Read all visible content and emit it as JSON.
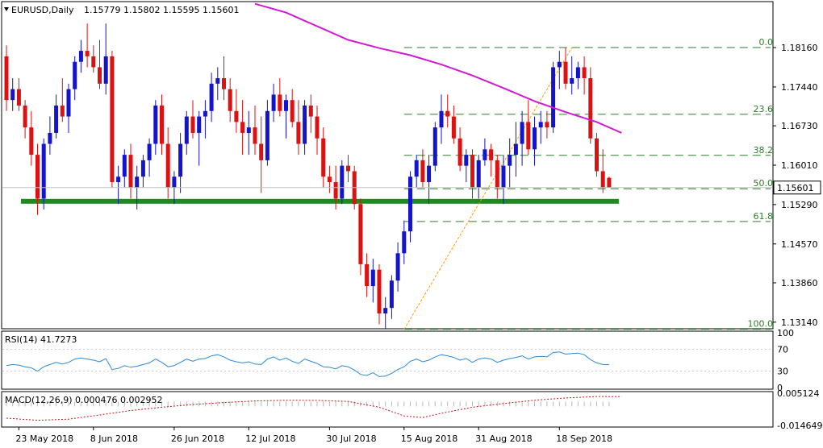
{
  "header": {
    "symbol": "EURUSD,Daily",
    "ohlc": "1.15779 1.15802 1.15595 1.15601"
  },
  "colors": {
    "bull": "#1414cc",
    "bear": "#dd1111",
    "ma": "#d21ad2",
    "support": "#1f8a1f",
    "fib": "#2e7d2e",
    "trend": "#ff9900",
    "rsi": "#2a8ad9",
    "macd_hist": "#b8b8b8",
    "macd_signal": "#c0161c"
  },
  "chart_data": [
    {
      "type": "candlestick",
      "title": "EURUSD,Daily",
      "ylim": [
        1.1302,
        1.19
      ],
      "y_ticks": [
        "1.18160",
        "1.17440",
        "1.16730",
        "1.16010",
        "1.15290",
        "1.14570",
        "1.13860",
        "1.13140"
      ],
      "y_tick_values": [
        1.1816,
        1.1744,
        1.1673,
        1.1601,
        1.1529,
        1.1457,
        1.1386,
        1.1314
      ],
      "current_price": "1.15601",
      "current_price_value": 1.15601,
      "x_labels": [
        "23 May 2018",
        "8 Jun 2018",
        "26 Jun 2018",
        "12 Jul 2018",
        "30 Jul 2018",
        "15 Aug 2018",
        "31 Aug 2018",
        "18 Sep 2018"
      ],
      "x_label_index": [
        2,
        14,
        27,
        39,
        52,
        64,
        76,
        89
      ],
      "candles": [
        [
          1.18,
          1.182,
          1.17,
          1.172
        ],
        [
          1.172,
          1.176,
          1.17,
          1.174
        ],
        [
          1.174,
          1.176,
          1.17,
          1.171
        ],
        [
          1.171,
          1.172,
          1.165,
          1.167
        ],
        [
          1.167,
          1.17,
          1.16,
          1.162
        ],
        [
          1.162,
          1.164,
          1.151,
          1.154
        ],
        [
          1.154,
          1.165,
          1.152,
          1.164
        ],
        [
          1.164,
          1.169,
          1.162,
          1.166
        ],
        [
          1.166,
          1.173,
          1.165,
          1.171
        ],
        [
          1.171,
          1.176,
          1.168,
          1.169
        ],
        [
          1.169,
          1.175,
          1.166,
          1.174
        ],
        [
          1.174,
          1.18,
          1.172,
          1.179
        ],
        [
          1.179,
          1.183,
          1.177,
          1.181
        ],
        [
          1.181,
          1.186,
          1.178,
          1.18
        ],
        [
          1.18,
          1.182,
          1.177,
          1.178
        ],
        [
          1.178,
          1.183,
          1.174,
          1.175
        ],
        [
          1.175,
          1.186,
          1.173,
          1.18
        ],
        [
          1.18,
          1.181,
          1.156,
          1.157
        ],
        [
          1.157,
          1.16,
          1.153,
          1.158
        ],
        [
          1.158,
          1.163,
          1.156,
          1.162
        ],
        [
          1.162,
          1.164,
          1.154,
          1.156
        ],
        [
          1.156,
          1.16,
          1.152,
          1.158
        ],
        [
          1.158,
          1.162,
          1.156,
          1.161
        ],
        [
          1.161,
          1.165,
          1.158,
          1.164
        ],
        [
          1.164,
          1.172,
          1.162,
          1.171
        ],
        [
          1.171,
          1.173,
          1.162,
          1.164
        ],
        [
          1.164,
          1.167,
          1.154,
          1.156
        ],
        [
          1.156,
          1.159,
          1.153,
          1.158
        ],
        [
          1.158,
          1.166,
          1.155,
          1.164
        ],
        [
          1.164,
          1.17,
          1.162,
          1.169
        ],
        [
          1.169,
          1.172,
          1.165,
          1.166
        ],
        [
          1.166,
          1.17,
          1.16,
          1.169
        ],
        [
          1.169,
          1.172,
          1.165,
          1.17
        ],
        [
          1.17,
          1.177,
          1.168,
          1.175
        ],
        [
          1.175,
          1.178,
          1.172,
          1.176
        ],
        [
          1.176,
          1.18,
          1.172,
          1.174
        ],
        [
          1.174,
          1.176,
          1.168,
          1.17
        ],
        [
          1.17,
          1.174,
          1.166,
          1.168
        ],
        [
          1.168,
          1.172,
          1.162,
          1.166
        ],
        [
          1.166,
          1.17,
          1.162,
          1.167
        ],
        [
          1.167,
          1.171,
          1.162,
          1.164
        ],
        [
          1.164,
          1.169,
          1.155,
          1.161
        ],
        [
          1.161,
          1.172,
          1.16,
          1.17
        ],
        [
          1.17,
          1.175,
          1.168,
          1.173
        ],
        [
          1.173,
          1.176,
          1.169,
          1.17
        ],
        [
          1.17,
          1.173,
          1.165,
          1.172
        ],
        [
          1.172,
          1.174,
          1.167,
          1.168
        ],
        [
          1.168,
          1.172,
          1.162,
          1.164
        ],
        [
          1.164,
          1.172,
          1.162,
          1.171
        ],
        [
          1.171,
          1.173,
          1.166,
          1.169
        ],
        [
          1.169,
          1.171,
          1.162,
          1.165
        ],
        [
          1.165,
          1.167,
          1.156,
          1.158
        ],
        [
          1.158,
          1.16,
          1.155,
          1.157
        ],
        [
          1.157,
          1.16,
          1.152,
          1.154
        ],
        [
          1.154,
          1.161,
          1.153,
          1.16
        ],
        [
          1.16,
          1.162,
          1.157,
          1.159
        ],
        [
          1.159,
          1.16,
          1.152,
          1.153
        ],
        [
          1.153,
          1.154,
          1.14,
          1.142
        ],
        [
          1.142,
          1.144,
          1.136,
          1.138
        ],
        [
          1.138,
          1.143,
          1.135,
          1.141
        ],
        [
          1.141,
          1.142,
          1.131,
          1.133
        ],
        [
          1.133,
          1.136,
          1.1301,
          1.134
        ],
        [
          1.134,
          1.14,
          1.132,
          1.139
        ],
        [
          1.139,
          1.146,
          1.137,
          1.144
        ],
        [
          1.144,
          1.15,
          1.142,
          1.148
        ],
        [
          1.148,
          1.159,
          1.146,
          1.158
        ],
        [
          1.158,
          1.162,
          1.156,
          1.161
        ],
        [
          1.161,
          1.163,
          1.156,
          1.157
        ],
        [
          1.157,
          1.162,
          1.153,
          1.16
        ],
        [
          1.16,
          1.168,
          1.159,
          1.167
        ],
        [
          1.167,
          1.173,
          1.164,
          1.17
        ],
        [
          1.17,
          1.173,
          1.167,
          1.169
        ],
        [
          1.169,
          1.171,
          1.164,
          1.165
        ],
        [
          1.165,
          1.167,
          1.159,
          1.16
        ],
        [
          1.16,
          1.163,
          1.157,
          1.162
        ],
        [
          1.162,
          1.163,
          1.154,
          1.156
        ],
        [
          1.156,
          1.162,
          1.154,
          1.161
        ],
        [
          1.161,
          1.165,
          1.16,
          1.163
        ],
        [
          1.163,
          1.164,
          1.158,
          1.161
        ],
        [
          1.161,
          1.162,
          1.154,
          1.156
        ],
        [
          1.156,
          1.162,
          1.153,
          1.16
        ],
        [
          1.16,
          1.165,
          1.156,
          1.162
        ],
        [
          1.162,
          1.168,
          1.158,
          1.164
        ],
        [
          1.164,
          1.17,
          1.16,
          1.168
        ],
        [
          1.168,
          1.172,
          1.162,
          1.163
        ],
        [
          1.163,
          1.169,
          1.16,
          1.167
        ],
        [
          1.167,
          1.17,
          1.164,
          1.168
        ],
        [
          1.168,
          1.17,
          1.165,
          1.167
        ],
        [
          1.167,
          1.179,
          1.166,
          1.178
        ],
        [
          1.178,
          1.181,
          1.174,
          1.179
        ],
        [
          1.179,
          1.1816,
          1.174,
          1.175
        ],
        [
          1.175,
          1.18,
          1.173,
          1.176
        ],
        [
          1.176,
          1.179,
          1.174,
          1.178
        ],
        [
          1.178,
          1.18,
          1.173,
          1.176
        ],
        [
          1.176,
          1.178,
          1.164,
          1.165
        ],
        [
          1.165,
          1.166,
          1.158,
          1.159
        ],
        [
          1.159,
          1.163,
          1.155,
          1.156
        ],
        [
          1.1578,
          1.158,
          1.156,
          1.156
        ]
      ],
      "moving_average": [
        [
          40,
          1.1896
        ],
        [
          45,
          1.188
        ],
        [
          50,
          1.1855
        ],
        [
          55,
          1.183
        ],
        [
          60,
          1.1815
        ],
        [
          65,
          1.1802
        ],
        [
          70,
          1.1785
        ],
        [
          75,
          1.1765
        ],
        [
          80,
          1.1742
        ],
        [
          85,
          1.1718
        ],
        [
          90,
          1.1698
        ],
        [
          95,
          1.168
        ],
        [
          99,
          1.166
        ]
      ],
      "support_line": 1.1535,
      "trend_line": {
        "from": [
          64,
          1.1301
        ],
        "to": [
          91,
          1.1816
        ]
      },
      "fibonacci": {
        "high": 1.1816,
        "low": 1.1301,
        "start_index": 64,
        "levels": [
          {
            "label": "0.0",
            "value": 1.1816
          },
          {
            "label": "23.6",
            "value": 1.1694
          },
          {
            "label": "38.2",
            "value": 1.1619
          },
          {
            "label": "50.0",
            "value": 1.1558
          },
          {
            "label": "61.8",
            "value": 1.1498
          },
          {
            "label": "100.0",
            "value": 1.1301
          }
        ]
      }
    },
    {
      "type": "line",
      "title": "RSI(14) 41.7273",
      "ylim": [
        0,
        100
      ],
      "y_ticks": [
        "100",
        "70",
        "30",
        "0"
      ],
      "y_tick_values": [
        100,
        70,
        30,
        0
      ],
      "values": [
        40,
        42,
        41,
        38,
        36,
        30,
        38,
        42,
        46,
        43,
        46,
        52,
        54,
        52,
        50,
        47,
        53,
        33,
        35,
        40,
        37,
        39,
        42,
        45,
        52,
        46,
        38,
        40,
        46,
        52,
        48,
        52,
        53,
        58,
        60,
        56,
        50,
        47,
        45,
        47,
        43,
        42,
        52,
        56,
        50,
        54,
        48,
        44,
        52,
        48,
        44,
        38,
        37,
        34,
        40,
        38,
        32,
        24,
        22,
        27,
        20,
        21,
        26,
        33,
        38,
        48,
        52,
        47,
        50,
        56,
        60,
        58,
        55,
        50,
        53,
        46,
        52,
        54,
        52,
        46,
        50,
        53,
        55,
        58,
        52,
        56,
        57,
        56,
        64,
        65,
        61,
        62,
        63,
        60,
        51,
        45,
        42,
        41.7273
      ]
    },
    {
      "type": "bar",
      "title": "MACD(12,26,9) 0.000476 0.002952",
      "ylim": [
        -0.014649,
        0.005124
      ],
      "y_ticks": [
        "0.005124",
        "-0.014649"
      ],
      "y_tick_values": [
        0.005124,
        -0.014649
      ],
      "signal": [
        [
          0,
          -0.0102
        ],
        [
          5,
          -0.0115
        ],
        [
          10,
          -0.0108
        ],
        [
          15,
          -0.0082
        ],
        [
          20,
          -0.0055
        ],
        [
          25,
          -0.0035
        ],
        [
          30,
          -0.0018
        ],
        [
          35,
          -0.0006
        ],
        [
          40,
          0.0004
        ],
        [
          45,
          0.0008
        ],
        [
          50,
          0.0007
        ],
        [
          55,
          0.0001
        ],
        [
          60,
          -0.0035
        ],
        [
          64,
          -0.0088
        ],
        [
          67,
          -0.0098
        ],
        [
          70,
          -0.0072
        ],
        [
          75,
          -0.0035
        ],
        [
          80,
          -0.0012
        ],
        [
          85,
          0.0008
        ],
        [
          90,
          0.0022
        ],
        [
          95,
          0.0031
        ],
        [
          99,
          0.003
        ]
      ]
    }
  ]
}
